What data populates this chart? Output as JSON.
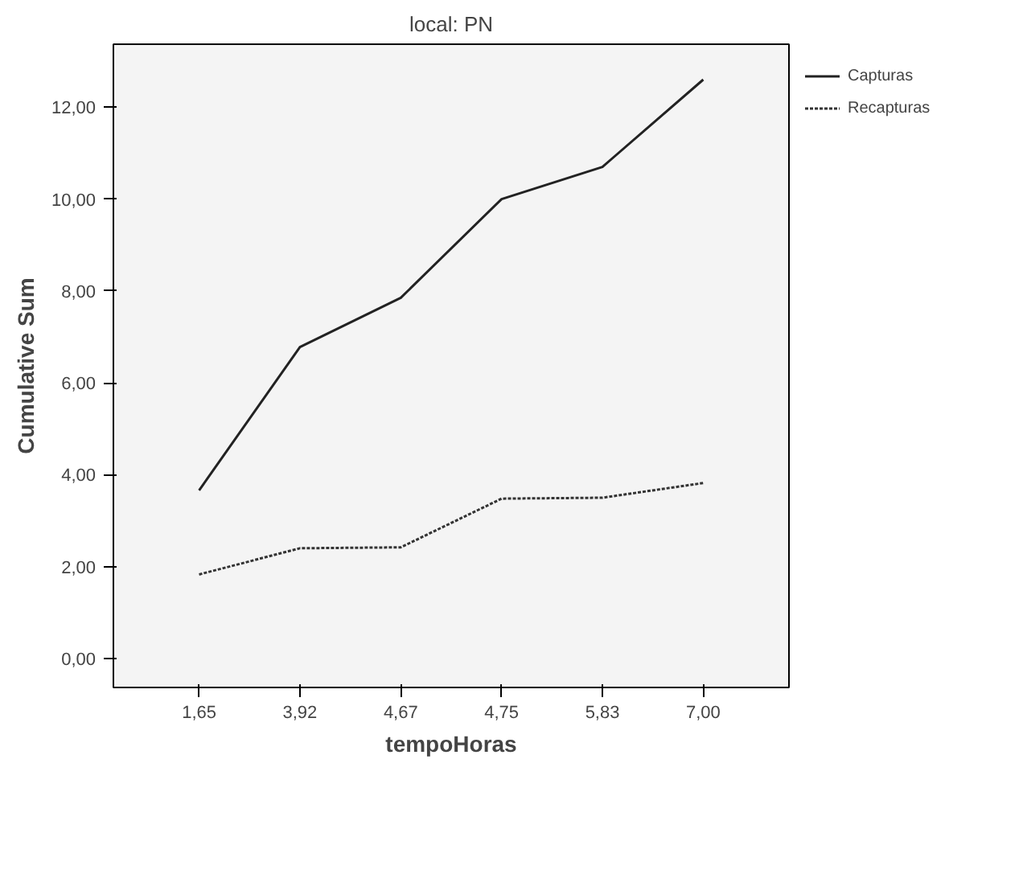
{
  "chart_data": {
    "type": "line",
    "title": "local: PN",
    "xlabel": "tempoHoras",
    "ylabel": "Cumulative Sum",
    "categories": [
      "1,65",
      "3,92",
      "4,67",
      "4,75",
      "5,83",
      "7,00"
    ],
    "series": [
      {
        "name": "Capturas",
        "color": "#222222",
        "line_style": "solid",
        "values": [
          3.66,
          6.78,
          7.85,
          10.0,
          10.7,
          12.6
        ]
      },
      {
        "name": "Recapturas",
        "color": "#333333",
        "line_style": "dotted",
        "values": [
          1.83,
          2.4,
          2.42,
          3.48,
          3.5,
          3.82
        ]
      }
    ],
    "ylim": [
      -0.63,
      13.37
    ],
    "yticks": [
      {
        "value": 0,
        "label": "0,00"
      },
      {
        "value": 2,
        "label": "2,00"
      },
      {
        "value": 4,
        "label": "4,00"
      },
      {
        "value": 6,
        "label": "6,00"
      },
      {
        "value": 8,
        "label": "8,00"
      },
      {
        "value": 10,
        "label": "10,00"
      },
      {
        "value": 12,
        "label": "12,00"
      }
    ],
    "grid": false,
    "legend": "top right",
    "marker": "none"
  }
}
